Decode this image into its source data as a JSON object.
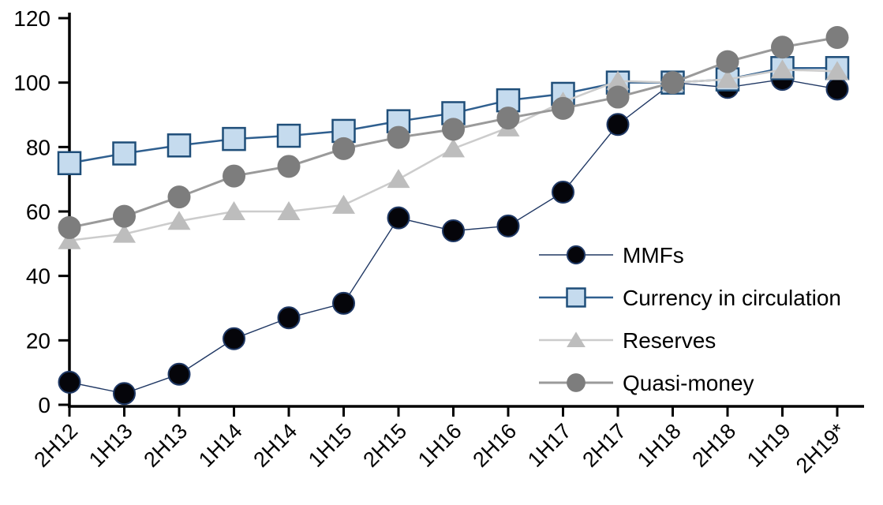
{
  "chart_data": {
    "type": "line",
    "title": "",
    "xlabel": "",
    "ylabel": "",
    "grid": false,
    "legend_position": "inside-right",
    "axis_color": "#000000",
    "ylim": [
      0,
      120
    ],
    "yticks": [
      0,
      20,
      40,
      60,
      80,
      100,
      120
    ],
    "categories": [
      "2H12",
      "1H13",
      "2H13",
      "1H14",
      "2H14",
      "1H15",
      "2H15",
      "1H16",
      "2H16",
      "1H17",
      "2H17",
      "1H18",
      "2H18",
      "1H19",
      "2H19*"
    ],
    "series": [
      {
        "name": "MMFs",
        "marker": "circle",
        "marker_fill": "#05050a",
        "marker_stroke": "#1F3864",
        "line_color": "#203864",
        "line_width": 1.4,
        "values": [
          7,
          3.5,
          9.5,
          20.5,
          27,
          31.5,
          58,
          54,
          55.5,
          66,
          87,
          100,
          98.5,
          101,
          98
        ]
      },
      {
        "name": "Currency in circulation",
        "marker": "square",
        "marker_fill": "#C5DBEE",
        "marker_stroke": "#1F4E79",
        "line_color": "#2F5F8F",
        "line_width": 2.5,
        "values": [
          75,
          78,
          80.5,
          82.5,
          83.5,
          85,
          88,
          90.5,
          94.5,
          96.5,
          100,
          100,
          101,
          104.5,
          104.5
        ]
      },
      {
        "name": "Reserves",
        "marker": "triangle",
        "marker_fill": "#BDBDBD",
        "marker_stroke": "none",
        "line_color": "#CCCCCC",
        "line_width": 2.5,
        "values": [
          51,
          53,
          57,
          60,
          60,
          62,
          70,
          79.5,
          86,
          94,
          100.5,
          100,
          101,
          104,
          103.5
        ]
      },
      {
        "name": "Quasi-money",
        "marker": "circle",
        "marker_fill": "#7D7D7D",
        "marker_stroke": "none",
        "line_color": "#9A9A9A",
        "line_width": 3,
        "values": [
          55,
          58.5,
          64.5,
          71,
          74,
          79.5,
          83,
          85.5,
          89,
          92,
          95.5,
          100,
          106.5,
          111,
          114
        ]
      }
    ]
  }
}
